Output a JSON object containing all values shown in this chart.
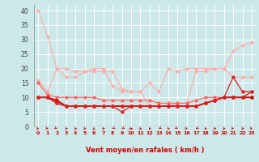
{
  "xlabel": "Vent moyen/en rafales ( km/h )",
  "background_color": "#cce8e8",
  "grid_color": "#ffffff",
  "x_values": [
    0,
    1,
    2,
    3,
    4,
    5,
    6,
    7,
    8,
    9,
    10,
    11,
    12,
    13,
    14,
    15,
    16,
    17,
    18,
    19,
    20,
    21,
    22,
    23
  ],
  "line1": [
    40,
    31,
    20,
    20,
    19,
    19,
    20,
    20,
    14,
    12,
    12,
    12,
    15,
    12,
    20,
    19,
    20,
    20,
    20,
    20,
    20,
    26,
    28,
    29
  ],
  "line2": [
    16,
    12,
    20,
    17,
    17,
    19,
    19,
    19,
    19,
    13,
    12,
    12,
    7,
    7,
    7,
    8,
    8,
    19,
    19,
    20,
    20,
    17,
    17,
    17
  ],
  "line3": [
    15,
    11,
    10,
    10,
    10,
    10,
    10,
    9,
    9,
    9,
    9,
    9,
    9,
    8,
    8,
    8,
    8,
    9,
    10,
    10,
    10,
    10,
    10,
    12
  ],
  "line4": [
    10,
    10,
    9,
    7,
    7,
    7,
    7,
    7,
    7,
    7,
    7,
    7,
    7,
    7,
    7,
    7,
    7,
    7,
    8,
    9,
    10,
    10,
    10,
    10
  ],
  "line5": [
    10,
    10,
    8,
    7,
    7,
    7,
    7,
    7,
    7,
    7,
    7,
    7,
    7,
    7,
    7,
    7,
    7,
    7,
    8,
    9,
    10,
    10,
    10,
    12
  ],
  "line6": [
    10,
    10,
    8,
    7,
    7,
    7,
    7,
    7,
    7,
    5,
    7,
    7,
    7,
    7,
    7,
    7,
    7,
    7,
    8,
    9,
    10,
    17,
    12,
    12
  ],
  "line7": [
    10,
    10,
    8,
    7,
    7,
    7,
    7,
    7,
    7,
    7,
    7,
    7,
    7,
    7,
    7,
    7,
    7,
    7,
    8,
    9,
    10,
    10,
    10,
    10
  ],
  "line1_color": "#ffaaaa",
  "line2_color": "#ffaaaa",
  "line3_color": "#ff6666",
  "line4_color": "#cc0000",
  "line5_color": "#dd2222",
  "line6_color": "#dd2222",
  "line7_color": "#cc0000",
  "ylim": [
    0,
    42
  ],
  "xlim": [
    -0.5,
    23.5
  ],
  "yticks": [
    0,
    5,
    10,
    15,
    20,
    25,
    30,
    35,
    40
  ],
  "arrow_angles": [
    45,
    45,
    30,
    -10,
    -10,
    -10,
    -20,
    -10,
    -30,
    -30,
    90,
    -10,
    -10,
    -30,
    -10,
    30,
    45,
    -30,
    -10,
    -10,
    -10,
    45,
    -10,
    45
  ]
}
